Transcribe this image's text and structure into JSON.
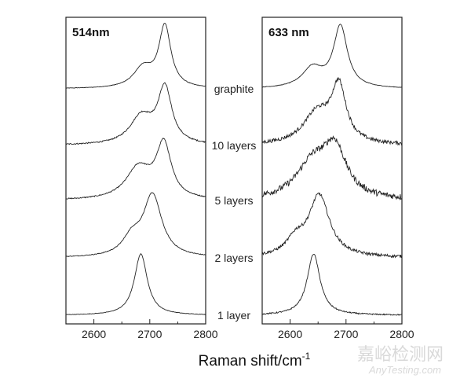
{
  "chart_data": [
    {
      "type": "line",
      "title": "514nm",
      "xlim": [
        2550,
        2800
      ],
      "xticks": [
        2600,
        2700,
        2800
      ],
      "y_scale": "stacked normalized intensity, no y axis",
      "series": [
        {
          "name": "graphite",
          "peaks": [
            {
              "center": 2727,
              "amp": 1.0,
              "fwhm": 26
            },
            {
              "center": 2688,
              "amp": 0.32,
              "fwhm": 42
            }
          ],
          "noise": 0.004
        },
        {
          "name": "10 layers",
          "peaks": [
            {
              "center": 2727,
              "amp": 0.9,
              "fwhm": 30
            },
            {
              "center": 2685,
              "amp": 0.45,
              "fwhm": 50
            }
          ],
          "noise": 0.01
        },
        {
          "name": "5 layers",
          "peaks": [
            {
              "center": 2725,
              "amp": 0.85,
              "fwhm": 32
            },
            {
              "center": 2680,
              "amp": 0.5,
              "fwhm": 55
            }
          ],
          "noise": 0.008
        },
        {
          "name": "2 layers",
          "peaks": [
            {
              "center": 2705,
              "amp": 1.0,
              "fwhm": 40
            },
            {
              "center": 2668,
              "amp": 0.28,
              "fwhm": 40
            }
          ],
          "noise": 0.006
        },
        {
          "name": "1 layer",
          "peaks": [
            {
              "center": 2684,
              "amp": 1.0,
              "fwhm": 28
            }
          ],
          "noise": 0.004
        }
      ]
    },
    {
      "type": "line",
      "title": "633 nm",
      "xlim": [
        2550,
        2800
      ],
      "xticks": [
        2600,
        2700,
        2800
      ],
      "y_scale": "stacked normalized intensity, no y axis",
      "series": [
        {
          "name": "graphite",
          "peaks": [
            {
              "center": 2690,
              "amp": 1.0,
              "fwhm": 30
            },
            {
              "center": 2640,
              "amp": 0.32,
              "fwhm": 45
            }
          ],
          "noise": 0.004
        },
        {
          "name": "10 layers",
          "peaks": [
            {
              "center": 2687,
              "amp": 0.9,
              "fwhm": 32
            },
            {
              "center": 2648,
              "amp": 0.5,
              "fwhm": 60
            }
          ],
          "noise": 0.03
        },
        {
          "name": "5 layers",
          "peaks": [
            {
              "center": 2680,
              "amp": 0.75,
              "fwhm": 50
            },
            {
              "center": 2640,
              "amp": 0.55,
              "fwhm": 70
            }
          ],
          "noise": 0.05
        },
        {
          "name": "2 layers",
          "peaks": [
            {
              "center": 2652,
              "amp": 1.0,
              "fwhm": 45
            },
            {
              "center": 2610,
              "amp": 0.25,
              "fwhm": 40
            }
          ],
          "noise": 0.025
        },
        {
          "name": "1 layer",
          "peaks": [
            {
              "center": 2642,
              "amp": 1.0,
              "fwhm": 28
            }
          ],
          "noise": 0.01
        }
      ]
    }
  ],
  "xlabel": "Raman shift/cm",
  "xlabel_superscript": "-1",
  "watermark": {
    "cn": "嘉峪检测网",
    "en": "AnyTesting.com"
  }
}
